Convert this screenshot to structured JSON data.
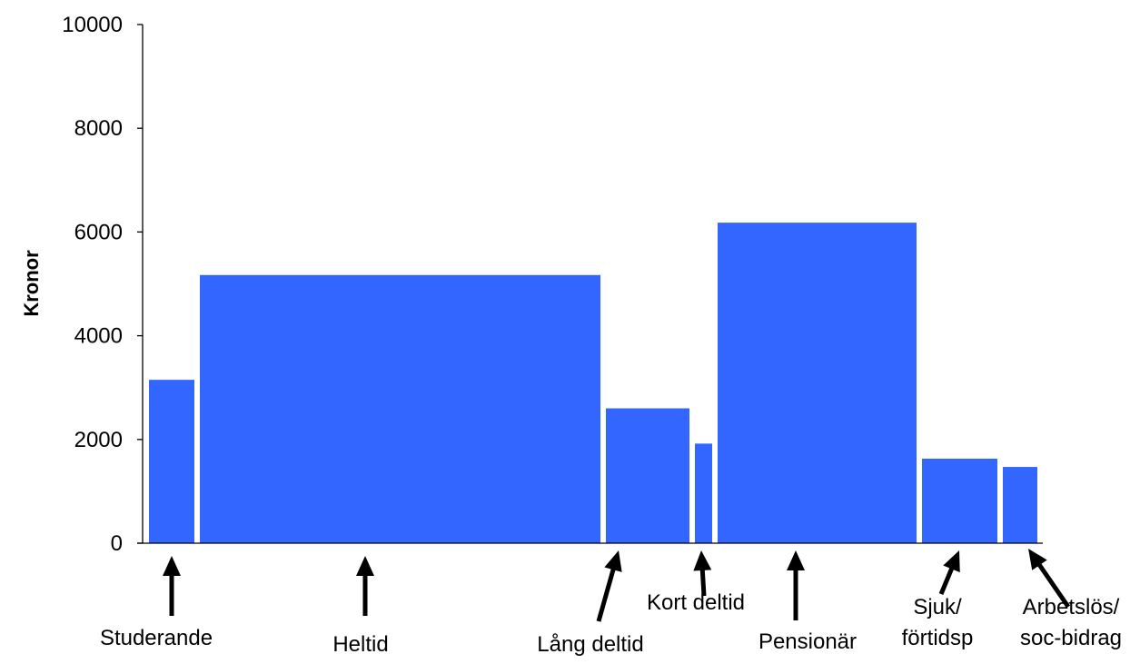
{
  "chart_data": {
    "type": "bar",
    "ylabel": "Kronor",
    "xlabel": "",
    "ylim": [
      0,
      10000
    ],
    "yticks": [
      0,
      2000,
      4000,
      6000,
      8000,
      10000
    ],
    "grid": false,
    "bar_color": "#3366FF",
    "variable_width": true,
    "categories": [
      {
        "name": "Studerande",
        "label_lines": [
          "Studerande"
        ],
        "value": 3150,
        "width_weight": 50
      },
      {
        "name": "Heltid",
        "label_lines": [
          "Heltid"
        ],
        "value": 5170,
        "width_weight": 441
      },
      {
        "name": "Lång deltid",
        "label_lines": [
          "Lång deltid"
        ],
        "value": 2600,
        "width_weight": 92
      },
      {
        "name": "Kort deltid",
        "label_lines": [
          "Kort deltid"
        ],
        "value": 1920,
        "width_weight": 19
      },
      {
        "name": "Pensionär",
        "label_lines": [
          "Pensionär"
        ],
        "value": 6180,
        "width_weight": 219
      },
      {
        "name": "Sjuk/ förtidsp",
        "label_lines": [
          "Sjuk/",
          "förtidsp"
        ],
        "value": 1630,
        "width_weight": 83
      },
      {
        "name": "Arbetslös/ soc-bidrag",
        "label_lines": [
          "Arbetslös/",
          "soc-bidrag"
        ],
        "value": 1470,
        "width_weight": 38
      }
    ]
  }
}
